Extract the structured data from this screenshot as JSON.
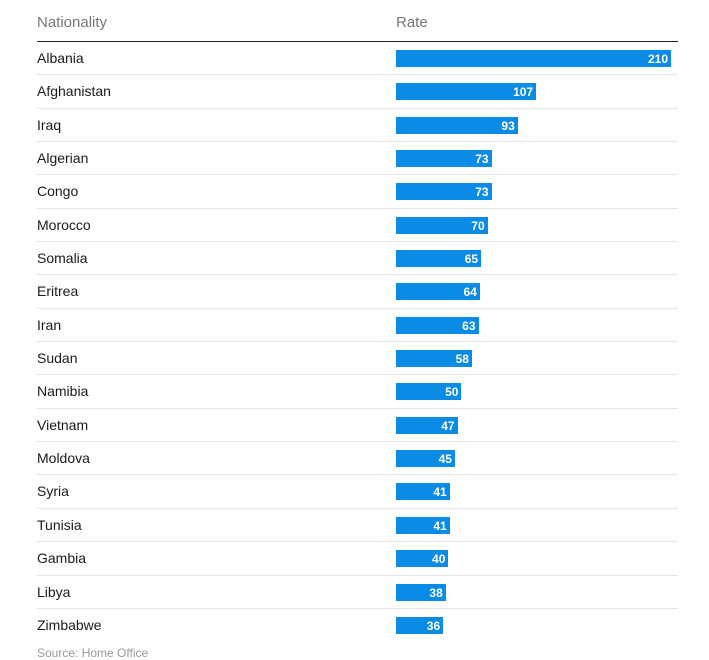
{
  "chart_data": {
    "type": "bar",
    "orientation": "horizontal",
    "columns": [
      "Nationality",
      "Rate"
    ],
    "categories": [
      "Albania",
      "Afghanistan",
      "Iraq",
      "Algerian",
      "Congo",
      "Morocco",
      "Somalia",
      "Eritrea",
      "Iran",
      "Sudan",
      "Namibia",
      "Vietnam",
      "Moldova",
      "Syria",
      "Tunisia",
      "Gambia",
      "Libya",
      "Zimbabwe"
    ],
    "values": [
      210,
      107,
      93,
      73,
      73,
      70,
      65,
      64,
      63,
      58,
      50,
      47,
      45,
      41,
      41,
      40,
      38,
      36
    ],
    "xlim": [
      0,
      210
    ],
    "bar_color": "#0a8be6",
    "grid": false,
    "title": "",
    "xlabel": "",
    "ylabel": ""
  },
  "source_text": "Source: Home Office"
}
